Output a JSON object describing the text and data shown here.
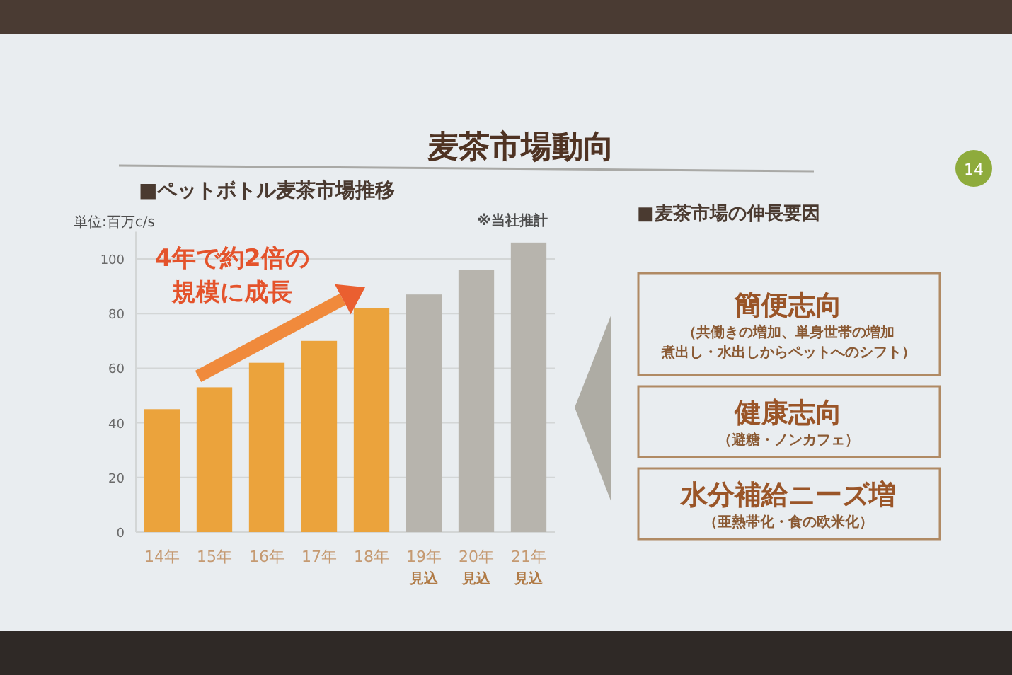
{
  "chart_data": [
    {
      "type": "bar",
      "title": "麦茶市場動向",
      "subtitle": "■ペットボトル麦茶市場推移",
      "ylabel": "単位:百万c/s",
      "categories": [
        "14年",
        "15年",
        "16年",
        "17年",
        "18年",
        "19年見込",
        "20年見込",
        "21年見込"
      ],
      "values": [
        45,
        53,
        62,
        70,
        82,
        87,
        96,
        106
      ],
      "colors": [
        "#eba33c",
        "#eba33c",
        "#eba33c",
        "#eba33c",
        "#eba33c",
        "#b7b4ad",
        "#b7b4ad",
        "#b7b4ad"
      ],
      "ylim": [
        0,
        110
      ],
      "yticks": [
        0,
        20,
        40,
        60,
        80,
        100
      ],
      "grid": "y",
      "annotations": [
        "※当社推計",
        "4年で約2倍の",
        "規模に成長",
        "14"
      ]
    },
    {
      "type": "other",
      "title": "■麦茶市場の伸長要因",
      "subtitle": "簡便志向",
      "annotations": [
        "（共働きの増加、単身世帯の増加",
        "煮出し・水出しからペットへのシフト）"
      ]
    },
    {
      "type": "other",
      "subtitle": "健康志向",
      "annotations": [
        "（避糖・ノンカフェ）"
      ]
    },
    {
      "type": "other",
      "subtitle": "水分補給ニーズ増",
      "annotations": [
        "（亜熱帯化・食の欧米化）"
      ]
    }
  ]
}
